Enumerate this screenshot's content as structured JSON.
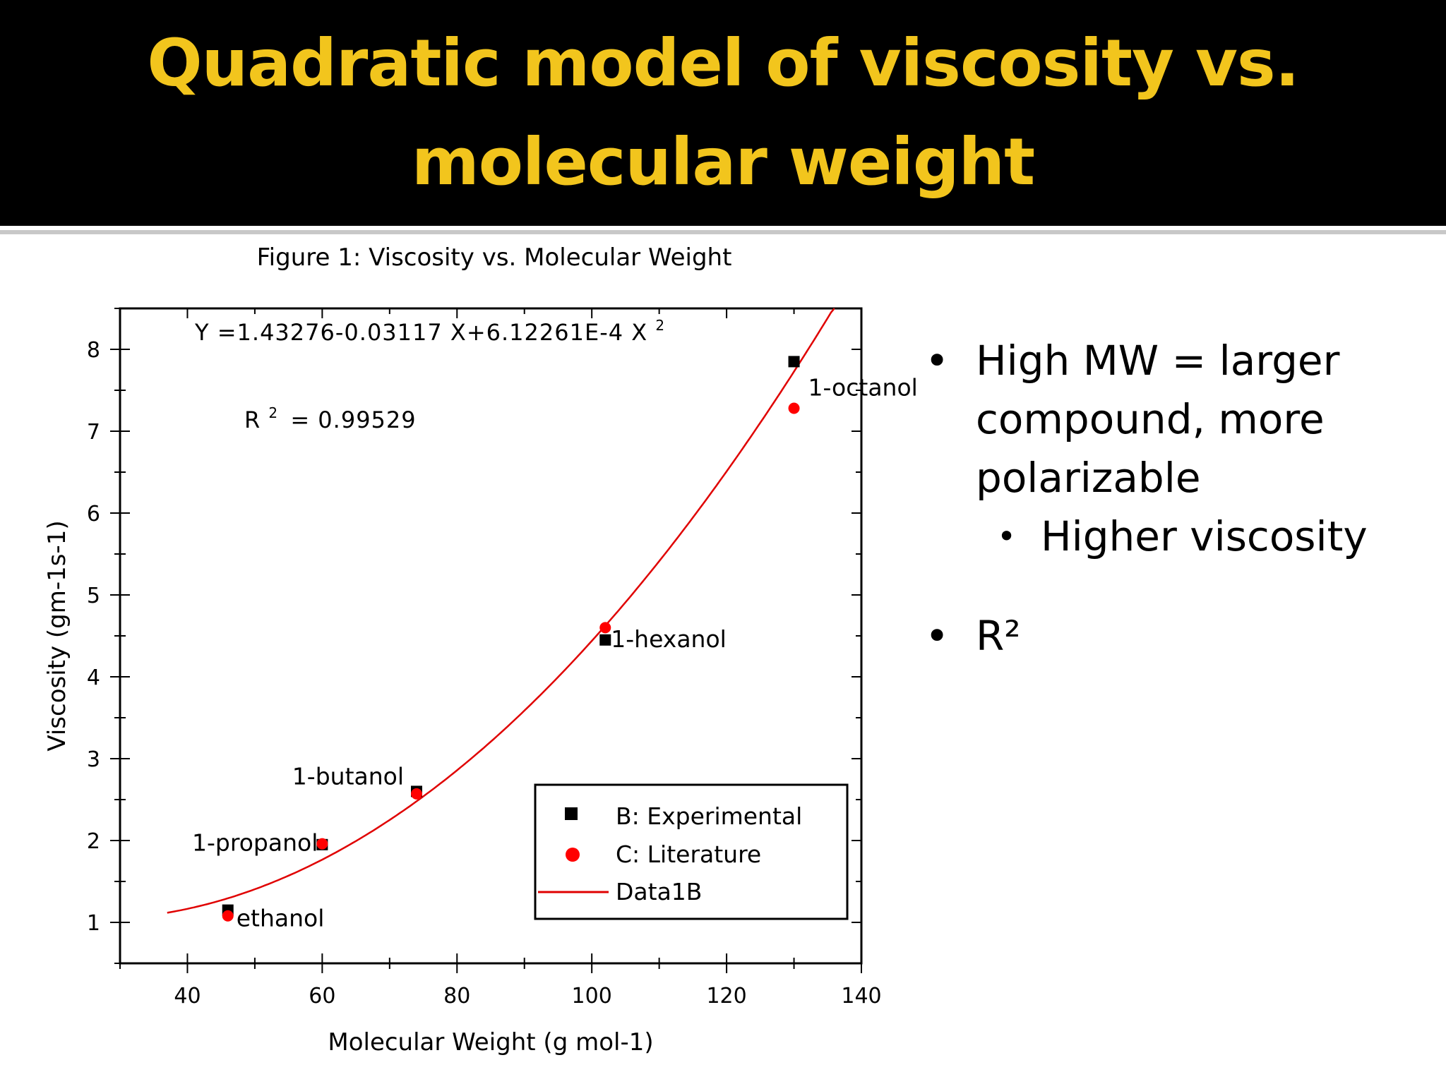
{
  "slide": {
    "title_line1": "Quadratic model of viscosity vs.",
    "title_line2": "molecular weight",
    "bullets": [
      {
        "text": "High MW = larger compound, more polarizable",
        "sub": [
          "Higher viscosity"
        ]
      },
      {
        "text": "R²",
        "sub": []
      }
    ],
    "colors": {
      "title": "#f2c51d",
      "background_band": "#000000"
    }
  },
  "chart_data": {
    "type": "scatter",
    "title": "Figure 1: Viscosity vs. Molecular Weight",
    "xlabel": "Molecular Weight (g mol-1)",
    "ylabel": "Viscosity (gm-1s-1)",
    "xlim": [
      30,
      140
    ],
    "ylim": [
      0.5,
      8.5
    ],
    "xticks": [
      40,
      60,
      80,
      100,
      120,
      140
    ],
    "yticks": [
      1,
      2,
      3,
      4,
      5,
      6,
      7,
      8
    ],
    "equation": "Y =1.43276-0.03117 X+6.12261E-4 X",
    "equation_power": "2",
    "r2_prefix": "R",
    "r2_power": "2",
    "r2_value": "= 0.99529",
    "fit": {
      "a": 1.43276,
      "b": -0.03117,
      "c": 0.000612261,
      "x_range": [
        37,
        136
      ],
      "color": "#e00000"
    },
    "legend": {
      "position": "lower-right",
      "entries": [
        {
          "label": "B: Experimental",
          "marker": "square",
          "color": "#000000"
        },
        {
          "label": "C: Literature",
          "marker": "circle",
          "color": "#ff0000"
        },
        {
          "label": "Data1B",
          "marker": "line",
          "color": "#e00000"
        }
      ]
    },
    "series": [
      {
        "name": "B: Experimental",
        "marker": "square",
        "color": "#000000",
        "x": [
          46,
          60,
          74,
          102,
          130
        ],
        "y": [
          1.15,
          1.95,
          2.6,
          4.45,
          7.85
        ]
      },
      {
        "name": "C: Literature",
        "marker": "circle",
        "color": "#ff0000",
        "x": [
          46,
          60,
          74,
          102,
          130
        ],
        "y": [
          1.08,
          1.96,
          2.57,
          4.6,
          7.28
        ]
      }
    ],
    "point_labels": [
      {
        "text": "ethanol",
        "x": 46,
        "y": 1.08
      },
      {
        "text": "1-propanol",
        "x": 60,
        "y": 1.96
      },
      {
        "text": "1-butanol",
        "x": 74,
        "y": 2.6
      },
      {
        "text": "1-hexanol",
        "x": 102,
        "y": 4.45
      },
      {
        "text": "1-octanol",
        "x": 130,
        "y": 7.85
      }
    ]
  }
}
